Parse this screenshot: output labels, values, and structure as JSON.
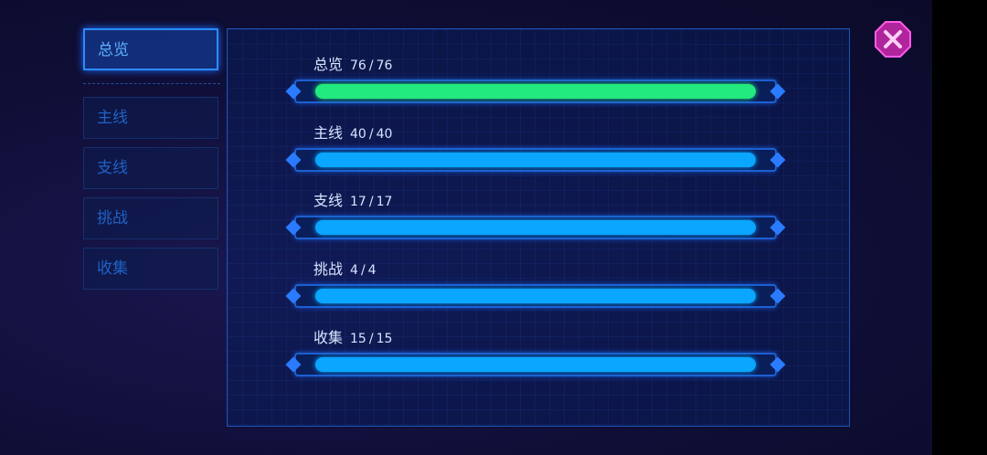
{
  "tabs": [
    {
      "label": "总览",
      "active": true
    },
    {
      "label": "主线",
      "active": false
    },
    {
      "label": "支线",
      "active": false
    },
    {
      "label": "挑战",
      "active": false
    },
    {
      "label": "收集",
      "active": false
    }
  ],
  "separator": "/",
  "rows": [
    {
      "label": "总览",
      "current": 76,
      "total": 76,
      "color": "#22ea7e"
    },
    {
      "label": "主线",
      "current": 40,
      "total": 40,
      "color": "#0aa6ff"
    },
    {
      "label": "支线",
      "current": 17,
      "total": 17,
      "color": "#0aa6ff"
    },
    {
      "label": "挑战",
      "current": 4,
      "total": 4,
      "color": "#0aa6ff"
    },
    {
      "label": "收集",
      "current": 15,
      "total": 15,
      "color": "#0aa6ff"
    }
  ]
}
